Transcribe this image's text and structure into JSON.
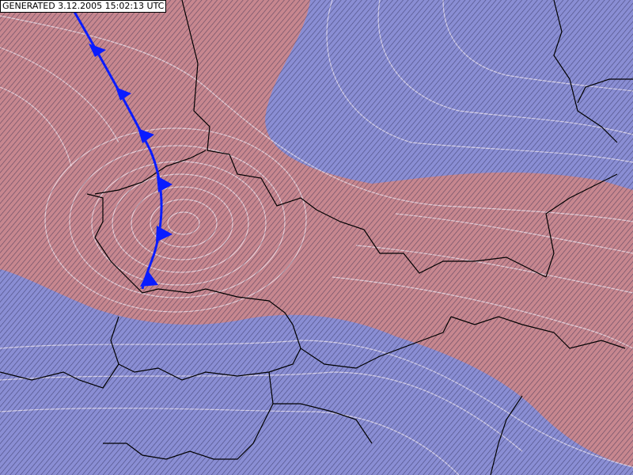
{
  "header": {
    "label": "GENERATED 3.12.2005 15:02:13 UTC"
  }
}
